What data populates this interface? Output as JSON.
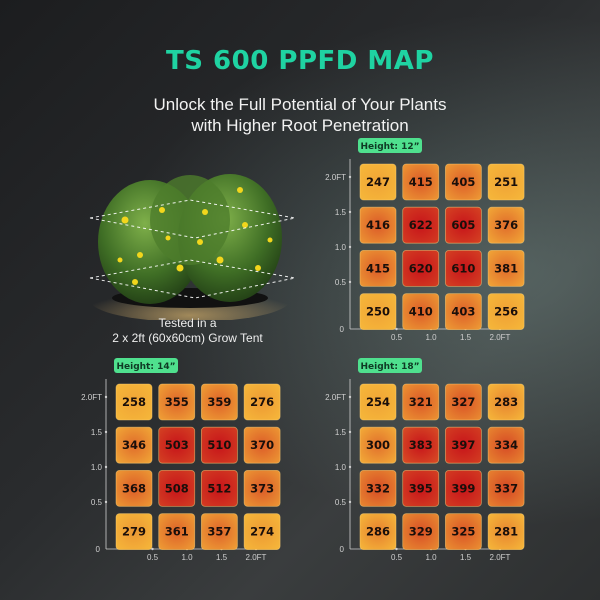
{
  "header": {
    "title": "TS 600 PPFD MAP",
    "subtitle_line1": "Unlock the Full Potential of Your Plants",
    "subtitle_line2": "with Higher Root Penetration"
  },
  "caption": {
    "line1": "Tested in a",
    "line2": "2 x 2ft (60x60cm) Grow Tent"
  },
  "colors": {
    "accent": "#1fd3a2",
    "badge": "#4fe08e",
    "low": "#f6b83a",
    "high": "#c7141a"
  },
  "chart_data": [
    {
      "type": "heatmap",
      "title": "Height: 12”",
      "x_ticks": [
        "0.5",
        "1.0",
        "1.5",
        "2.0FT"
      ],
      "y_ticks": [
        "2.0FT",
        "1.5",
        "1.0",
        "0.5",
        "0"
      ],
      "xlim": [
        0,
        2.0
      ],
      "ylim": [
        0,
        2.0
      ],
      "values": [
        [
          247,
          415,
          405,
          251
        ],
        [
          416,
          622,
          605,
          376
        ],
        [
          415,
          620,
          610,
          381
        ],
        [
          250,
          410,
          403,
          256
        ]
      ]
    },
    {
      "type": "heatmap",
      "title": "Height: 14”",
      "x_ticks": [
        "0.5",
        "1.0",
        "1.5",
        "2.0FT"
      ],
      "y_ticks": [
        "2.0FT",
        "1.5",
        "1.0",
        "0.5",
        "0"
      ],
      "xlim": [
        0,
        2.0
      ],
      "ylim": [
        0,
        2.0
      ],
      "values": [
        [
          258,
          355,
          359,
          276
        ],
        [
          346,
          503,
          510,
          370
        ],
        [
          368,
          508,
          512,
          373
        ],
        [
          279,
          361,
          357,
          274
        ]
      ]
    },
    {
      "type": "heatmap",
      "title": "Height: 18”",
      "x_ticks": [
        "0.5",
        "1.0",
        "1.5",
        "2.0FT"
      ],
      "y_ticks": [
        "2.0FT",
        "1.5",
        "1.0",
        "0.5",
        "0"
      ],
      "xlim": [
        0,
        2.0
      ],
      "ylim": [
        0,
        2.0
      ],
      "values": [
        [
          254,
          321,
          327,
          283
        ],
        [
          300,
          383,
          397,
          334
        ],
        [
          332,
          395,
          399,
          337
        ],
        [
          286,
          329,
          325,
          281
        ]
      ]
    }
  ]
}
